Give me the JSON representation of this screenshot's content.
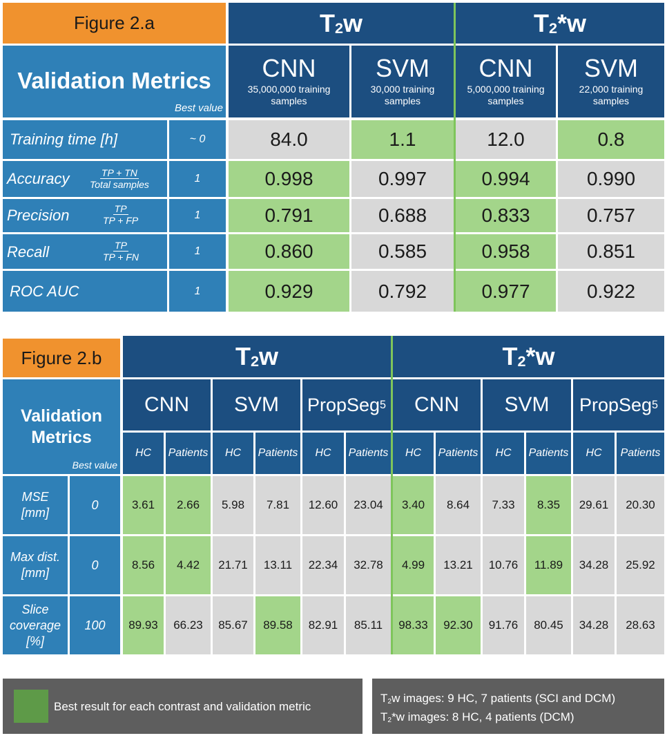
{
  "fig_a": {
    "title": "Figure 2.a",
    "contrast1": {
      "t": "T",
      "sub": "2",
      "rest": "w"
    },
    "contrast2": {
      "t": "T",
      "sub": "2",
      "rest": "*w"
    },
    "metrics_title": "Validation Metrics",
    "best_value_label": "Best value",
    "models": [
      {
        "name": "CNN",
        "samples": "35,000,000 training samples"
      },
      {
        "name": "SVM",
        "samples": "30,000 training samples"
      },
      {
        "name": "CNN",
        "samples": "5,000,000 training samples"
      },
      {
        "name": "SVM",
        "samples": "22,000 training samples"
      }
    ],
    "rows": [
      {
        "metric": "Training time [h]",
        "f_num": "",
        "f_den": "",
        "best": "~ 0",
        "values": [
          "84.0",
          "1.1",
          "12.0",
          "0.8"
        ]
      },
      {
        "metric": "Accuracy",
        "f_num": "TP + TN",
        "f_den": "Total samples",
        "best": "1",
        "values": [
          "0.998",
          "0.997",
          "0.994",
          "0.990"
        ]
      },
      {
        "metric": "Precision",
        "f_num": "TP",
        "f_den": "TP + FP",
        "best": "1",
        "values": [
          "0.791",
          "0.688",
          "0.833",
          "0.757"
        ]
      },
      {
        "metric": "Recall",
        "f_num": "TP",
        "f_den": "TP + FN",
        "best": "1",
        "values": [
          "0.860",
          "0.585",
          "0.958",
          "0.851"
        ]
      },
      {
        "metric": "ROC AUC",
        "f_num": "",
        "f_den": "",
        "best": "1",
        "values": [
          "0.929",
          "0.792",
          "0.977",
          "0.922"
        ]
      }
    ]
  },
  "fig_b": {
    "title": "Figure 2.b",
    "contrast1": {
      "t": "T",
      "sub": "2",
      "rest": "w"
    },
    "contrast2": {
      "t": "T",
      "sub": "2",
      "rest": "*w"
    },
    "metrics_title_1": "Validation",
    "metrics_title_2": "Metrics",
    "best_value_label": "Best value",
    "methods": [
      {
        "name": "CNN",
        "sup": ""
      },
      {
        "name": "SVM",
        "sup": ""
      },
      {
        "name": "PropSeg",
        "sup": "5"
      },
      {
        "name": "CNN",
        "sup": ""
      },
      {
        "name": "SVM",
        "sup": ""
      },
      {
        "name": "PropSeg",
        "sup": "5"
      }
    ],
    "subheaders": [
      "HC",
      "Patients",
      "HC",
      "Patients",
      "HC",
      "Patients",
      "HC",
      "Patients",
      "HC",
      "Patients",
      "HC",
      "Patients"
    ],
    "rows": [
      {
        "metric_lines": [
          "MSE",
          "[mm]"
        ],
        "best": "0",
        "values": [
          "3.61",
          "2.66",
          "5.98",
          "7.81",
          "12.60",
          "23.04",
          "3.40",
          "8.64",
          "7.33",
          "8.35",
          "29.61",
          "20.30"
        ]
      },
      {
        "metric_lines": [
          "Max dist.",
          "[mm]"
        ],
        "best": "0",
        "values": [
          "8.56",
          "4.42",
          "21.71",
          "13.11",
          "22.34",
          "32.78",
          "4.99",
          "13.21",
          "10.76",
          "11.89",
          "34.28",
          "25.92"
        ]
      },
      {
        "metric_lines": [
          "Slice",
          "coverage",
          "[%]"
        ],
        "best": "100",
        "values": [
          "89.93",
          "66.23",
          "85.67",
          "89.58",
          "82.91",
          "85.11",
          "98.33",
          "92.30",
          "91.76",
          "80.45",
          "34.28",
          "28.63"
        ]
      }
    ]
  },
  "legend": {
    "best_result": "Best result for each contrast and validation metric",
    "line1": {
      "t": "T",
      "sub": "2",
      "rest": "w images: 9 HC, 7 patients (SCI and DCM)"
    },
    "line2": {
      "t": "T",
      "sub": "2",
      "rest": "*w images: 8 HC, 4 patients (DCM)"
    }
  },
  "colors": {
    "orange": "#f0922e",
    "navy": "#1c4e80",
    "blue": "#2f80b7",
    "gray": "#d8d8d8",
    "green": "#a3d58a",
    "dark": "#5e5e5e"
  }
}
